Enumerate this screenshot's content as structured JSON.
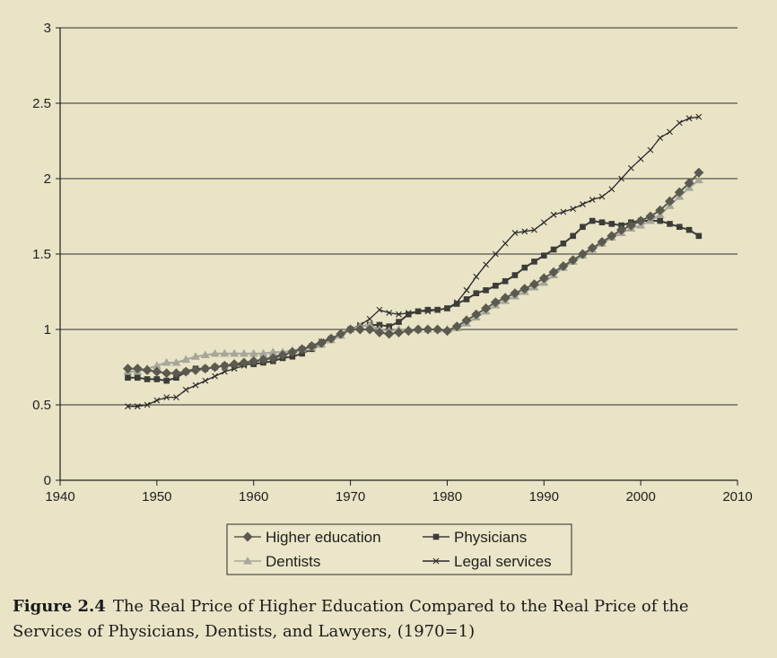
{
  "chart_data": {
    "type": "line",
    "title": "",
    "xlabel": "",
    "ylabel": "",
    "xlim": [
      1940,
      2010
    ],
    "ylim": [
      0,
      3
    ],
    "x_ticks": [
      1940,
      1950,
      1960,
      1970,
      1980,
      1990,
      2000,
      2010
    ],
    "y_ticks": [
      0,
      0.5,
      1,
      1.5,
      2,
      2.5,
      3
    ],
    "y_tick_labels": [
      "0",
      "0.5",
      "1",
      "1.5",
      "2",
      "2.5",
      "3"
    ],
    "grid": "horizontal",
    "legend_position": "bottom-center",
    "series": [
      {
        "name": "Higher education",
        "color": "#5a5a50",
        "marker": "diamond",
        "points": [
          [
            1947,
            0.74
          ],
          [
            1948,
            0.74
          ],
          [
            1949,
            0.73
          ],
          [
            1950,
            0.72
          ],
          [
            1951,
            0.71
          ],
          [
            1952,
            0.71
          ],
          [
            1953,
            0.72
          ],
          [
            1954,
            0.73
          ],
          [
            1955,
            0.74
          ],
          [
            1956,
            0.75
          ],
          [
            1957,
            0.76
          ],
          [
            1958,
            0.77
          ],
          [
            1959,
            0.78
          ],
          [
            1960,
            0.79
          ],
          [
            1961,
            0.8
          ],
          [
            1962,
            0.81
          ],
          [
            1963,
            0.83
          ],
          [
            1964,
            0.85
          ],
          [
            1965,
            0.87
          ],
          [
            1966,
            0.89
          ],
          [
            1967,
            0.91
          ],
          [
            1968,
            0.94
          ],
          [
            1969,
            0.97
          ],
          [
            1970,
            1.0
          ],
          [
            1971,
            1.0
          ],
          [
            1972,
            1.0
          ],
          [
            1973,
            0.98
          ],
          [
            1974,
            0.97
          ],
          [
            1975,
            0.98
          ],
          [
            1976,
            0.99
          ],
          [
            1977,
            1.0
          ],
          [
            1978,
            1.0
          ],
          [
            1979,
            1.0
          ],
          [
            1980,
            0.99
          ],
          [
            1981,
            1.02
          ],
          [
            1982,
            1.06
          ],
          [
            1983,
            1.1
          ],
          [
            1984,
            1.14
          ],
          [
            1985,
            1.18
          ],
          [
            1986,
            1.21
          ],
          [
            1987,
            1.24
          ],
          [
            1988,
            1.27
          ],
          [
            1989,
            1.3
          ],
          [
            1990,
            1.34
          ],
          [
            1991,
            1.38
          ],
          [
            1992,
            1.42
          ],
          [
            1993,
            1.46
          ],
          [
            1994,
            1.5
          ],
          [
            1995,
            1.54
          ],
          [
            1996,
            1.58
          ],
          [
            1997,
            1.62
          ],
          [
            1998,
            1.66
          ],
          [
            1999,
            1.69
          ],
          [
            2000,
            1.72
          ],
          [
            2001,
            1.75
          ],
          [
            2002,
            1.79
          ],
          [
            2003,
            1.85
          ],
          [
            2004,
            1.91
          ],
          [
            2005,
            1.97
          ],
          [
            2006,
            2.04
          ]
        ]
      },
      {
        "name": "Physicians",
        "color": "#3c3c38",
        "marker": "square",
        "points": [
          [
            1947,
            0.68
          ],
          [
            1948,
            0.68
          ],
          [
            1949,
            0.67
          ],
          [
            1950,
            0.67
          ],
          [
            1951,
            0.66
          ],
          [
            1952,
            0.68
          ],
          [
            1953,
            0.72
          ],
          [
            1954,
            0.74
          ],
          [
            1955,
            0.74
          ],
          [
            1956,
            0.75
          ],
          [
            1957,
            0.76
          ],
          [
            1958,
            0.76
          ],
          [
            1959,
            0.77
          ],
          [
            1960,
            0.77
          ],
          [
            1961,
            0.78
          ],
          [
            1962,
            0.79
          ],
          [
            1963,
            0.81
          ],
          [
            1964,
            0.82
          ],
          [
            1965,
            0.84
          ],
          [
            1966,
            0.87
          ],
          [
            1967,
            0.9
          ],
          [
            1968,
            0.93
          ],
          [
            1969,
            0.96
          ],
          [
            1970,
            1.0
          ],
          [
            1971,
            1.02
          ],
          [
            1972,
            1.03
          ],
          [
            1973,
            1.03
          ],
          [
            1974,
            1.02
          ],
          [
            1975,
            1.05
          ],
          [
            1976,
            1.1
          ],
          [
            1977,
            1.12
          ],
          [
            1978,
            1.13
          ],
          [
            1979,
            1.13
          ],
          [
            1980,
            1.14
          ],
          [
            1981,
            1.17
          ],
          [
            1982,
            1.2
          ],
          [
            1983,
            1.24
          ],
          [
            1984,
            1.26
          ],
          [
            1985,
            1.29
          ],
          [
            1986,
            1.32
          ],
          [
            1987,
            1.36
          ],
          [
            1988,
            1.41
          ],
          [
            1989,
            1.45
          ],
          [
            1990,
            1.49
          ],
          [
            1991,
            1.53
          ],
          [
            1992,
            1.57
          ],
          [
            1993,
            1.62
          ],
          [
            1994,
            1.68
          ],
          [
            1995,
            1.72
          ],
          [
            1996,
            1.71
          ],
          [
            1997,
            1.7
          ],
          [
            1998,
            1.69
          ],
          [
            1999,
            1.71
          ],
          [
            2000,
            1.72
          ],
          [
            2001,
            1.72
          ],
          [
            2002,
            1.72
          ],
          [
            2003,
            1.7
          ],
          [
            2004,
            1.68
          ],
          [
            2005,
            1.66
          ],
          [
            2006,
            1.62
          ]
        ]
      },
      {
        "name": "Dentists",
        "color": "#a6a699",
        "marker": "triangle",
        "points": [
          [
            1947,
            0.72
          ],
          [
            1948,
            0.72
          ],
          [
            1949,
            0.74
          ],
          [
            1950,
            0.76
          ],
          [
            1951,
            0.78
          ],
          [
            1952,
            0.78
          ],
          [
            1953,
            0.8
          ],
          [
            1954,
            0.82
          ],
          [
            1955,
            0.83
          ],
          [
            1956,
            0.84
          ],
          [
            1957,
            0.84
          ],
          [
            1958,
            0.84
          ],
          [
            1959,
            0.84
          ],
          [
            1960,
            0.84
          ],
          [
            1961,
            0.84
          ],
          [
            1962,
            0.85
          ],
          [
            1963,
            0.85
          ],
          [
            1964,
            0.86
          ],
          [
            1965,
            0.87
          ],
          [
            1966,
            0.88
          ],
          [
            1967,
            0.9
          ],
          [
            1968,
            0.93
          ],
          [
            1969,
            0.96
          ],
          [
            1970,
            1.0
          ],
          [
            1971,
            1.02
          ],
          [
            1972,
            1.03
          ],
          [
            1973,
            1.0
          ],
          [
            1974,
            0.99
          ],
          [
            1975,
            1.0
          ],
          [
            1976,
            1.0
          ],
          [
            1977,
            1.0
          ],
          [
            1978,
            1.0
          ],
          [
            1979,
            1.0
          ],
          [
            1980,
            1.0
          ],
          [
            1981,
            1.01
          ],
          [
            1982,
            1.04
          ],
          [
            1983,
            1.08
          ],
          [
            1984,
            1.12
          ],
          [
            1985,
            1.16
          ],
          [
            1986,
            1.19
          ],
          [
            1987,
            1.22
          ],
          [
            1988,
            1.25
          ],
          [
            1989,
            1.28
          ],
          [
            1990,
            1.31
          ],
          [
            1991,
            1.36
          ],
          [
            1992,
            1.41
          ],
          [
            1993,
            1.45
          ],
          [
            1994,
            1.49
          ],
          [
            1995,
            1.53
          ],
          [
            1996,
            1.57
          ],
          [
            1997,
            1.61
          ],
          [
            1998,
            1.64
          ],
          [
            1999,
            1.67
          ],
          [
            2000,
            1.69
          ],
          [
            2001,
            1.72
          ],
          [
            2002,
            1.76
          ],
          [
            2003,
            1.82
          ],
          [
            2004,
            1.88
          ],
          [
            2005,
            1.94
          ],
          [
            2006,
            1.99
          ]
        ]
      },
      {
        "name": "Legal services",
        "color": "#2a2a2a",
        "marker": "cross",
        "points": [
          [
            1947,
            0.49
          ],
          [
            1948,
            0.49
          ],
          [
            1949,
            0.5
          ],
          [
            1950,
            0.53
          ],
          [
            1951,
            0.55
          ],
          [
            1952,
            0.55
          ],
          [
            1953,
            0.6
          ],
          [
            1954,
            0.63
          ],
          [
            1955,
            0.66
          ],
          [
            1956,
            0.69
          ],
          [
            1957,
            0.72
          ],
          [
            1958,
            0.74
          ],
          [
            1959,
            0.76
          ],
          [
            1960,
            0.78
          ],
          [
            1961,
            0.8
          ],
          [
            1962,
            0.82
          ],
          [
            1963,
            0.83
          ],
          [
            1964,
            0.85
          ],
          [
            1965,
            0.87
          ],
          [
            1966,
            0.89
          ],
          [
            1967,
            0.92
          ],
          [
            1968,
            0.94
          ],
          [
            1969,
            0.96
          ],
          [
            1970,
            1.0
          ],
          [
            1971,
            1.03
          ],
          [
            1972,
            1.07
          ],
          [
            1973,
            1.13
          ],
          [
            1974,
            1.11
          ],
          [
            1975,
            1.1
          ],
          [
            1976,
            1.11
          ],
          [
            1977,
            1.12
          ],
          [
            1978,
            1.12
          ],
          [
            1979,
            1.13
          ],
          [
            1980,
            1.14
          ],
          [
            1981,
            1.18
          ],
          [
            1982,
            1.26
          ],
          [
            1983,
            1.35
          ],
          [
            1984,
            1.43
          ],
          [
            1985,
            1.5
          ],
          [
            1986,
            1.57
          ],
          [
            1987,
            1.64
          ],
          [
            1988,
            1.65
          ],
          [
            1989,
            1.66
          ],
          [
            1990,
            1.71
          ],
          [
            1991,
            1.76
          ],
          [
            1992,
            1.78
          ],
          [
            1993,
            1.8
          ],
          [
            1994,
            1.83
          ],
          [
            1995,
            1.86
          ],
          [
            1996,
            1.88
          ],
          [
            1997,
            1.93
          ],
          [
            1998,
            2.0
          ],
          [
            1999,
            2.07
          ],
          [
            2000,
            2.13
          ],
          [
            2001,
            2.19
          ],
          [
            2002,
            2.27
          ],
          [
            2003,
            2.31
          ],
          [
            2004,
            2.37
          ],
          [
            2005,
            2.4
          ],
          [
            2006,
            2.41
          ]
        ]
      }
    ]
  },
  "caption": {
    "figure_number": "Figure 2.4",
    "text": "The Real Price of Higher Education Compared to the Real Price of the Services of Physicians, Dentists, and Lawyers, (1970=1)"
  }
}
